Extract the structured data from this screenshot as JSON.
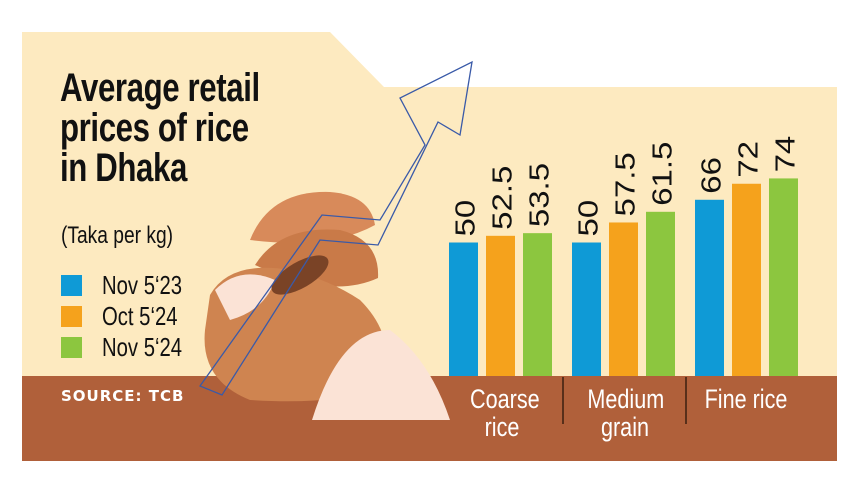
{
  "chart_data": {
    "type": "bar",
    "title": "Average retail prices of rice in Dhaka",
    "title_lines": [
      "Average retail",
      "prices of rice",
      "in Dhaka"
    ],
    "subtitle": "(Taka per kg)",
    "categories": [
      "Coarse rice",
      "Medium grain",
      "Fine rice"
    ],
    "category_lines": [
      [
        "Coarse",
        "rice"
      ],
      [
        "Medium",
        "grain"
      ],
      [
        "Fine rice"
      ]
    ],
    "series": [
      {
        "name": "Nov 5‘23",
        "values": [
          50,
          50,
          66
        ],
        "labels": [
          "50",
          "50",
          "66"
        ],
        "color": "#0f9ad6"
      },
      {
        "name": "Oct 5‘24",
        "values": [
          52.5,
          57.5,
          72
        ],
        "labels": [
          "52.5",
          "57.5",
          "72"
        ],
        "color": "#f5a21c"
      },
      {
        "name": "Nov 5‘24",
        "values": [
          53.5,
          61.5,
          74
        ],
        "labels": [
          "53.5",
          "61.5",
          "74"
        ],
        "color": "#8cc63f"
      }
    ],
    "ylim": [
      0,
      80
    ],
    "grid": false,
    "legend": "left",
    "source": "SOURCE: TCB"
  },
  "colors": {
    "background": "#fdeac0",
    "band": "#b0603a",
    "arrow": "#3a5aa8"
  }
}
